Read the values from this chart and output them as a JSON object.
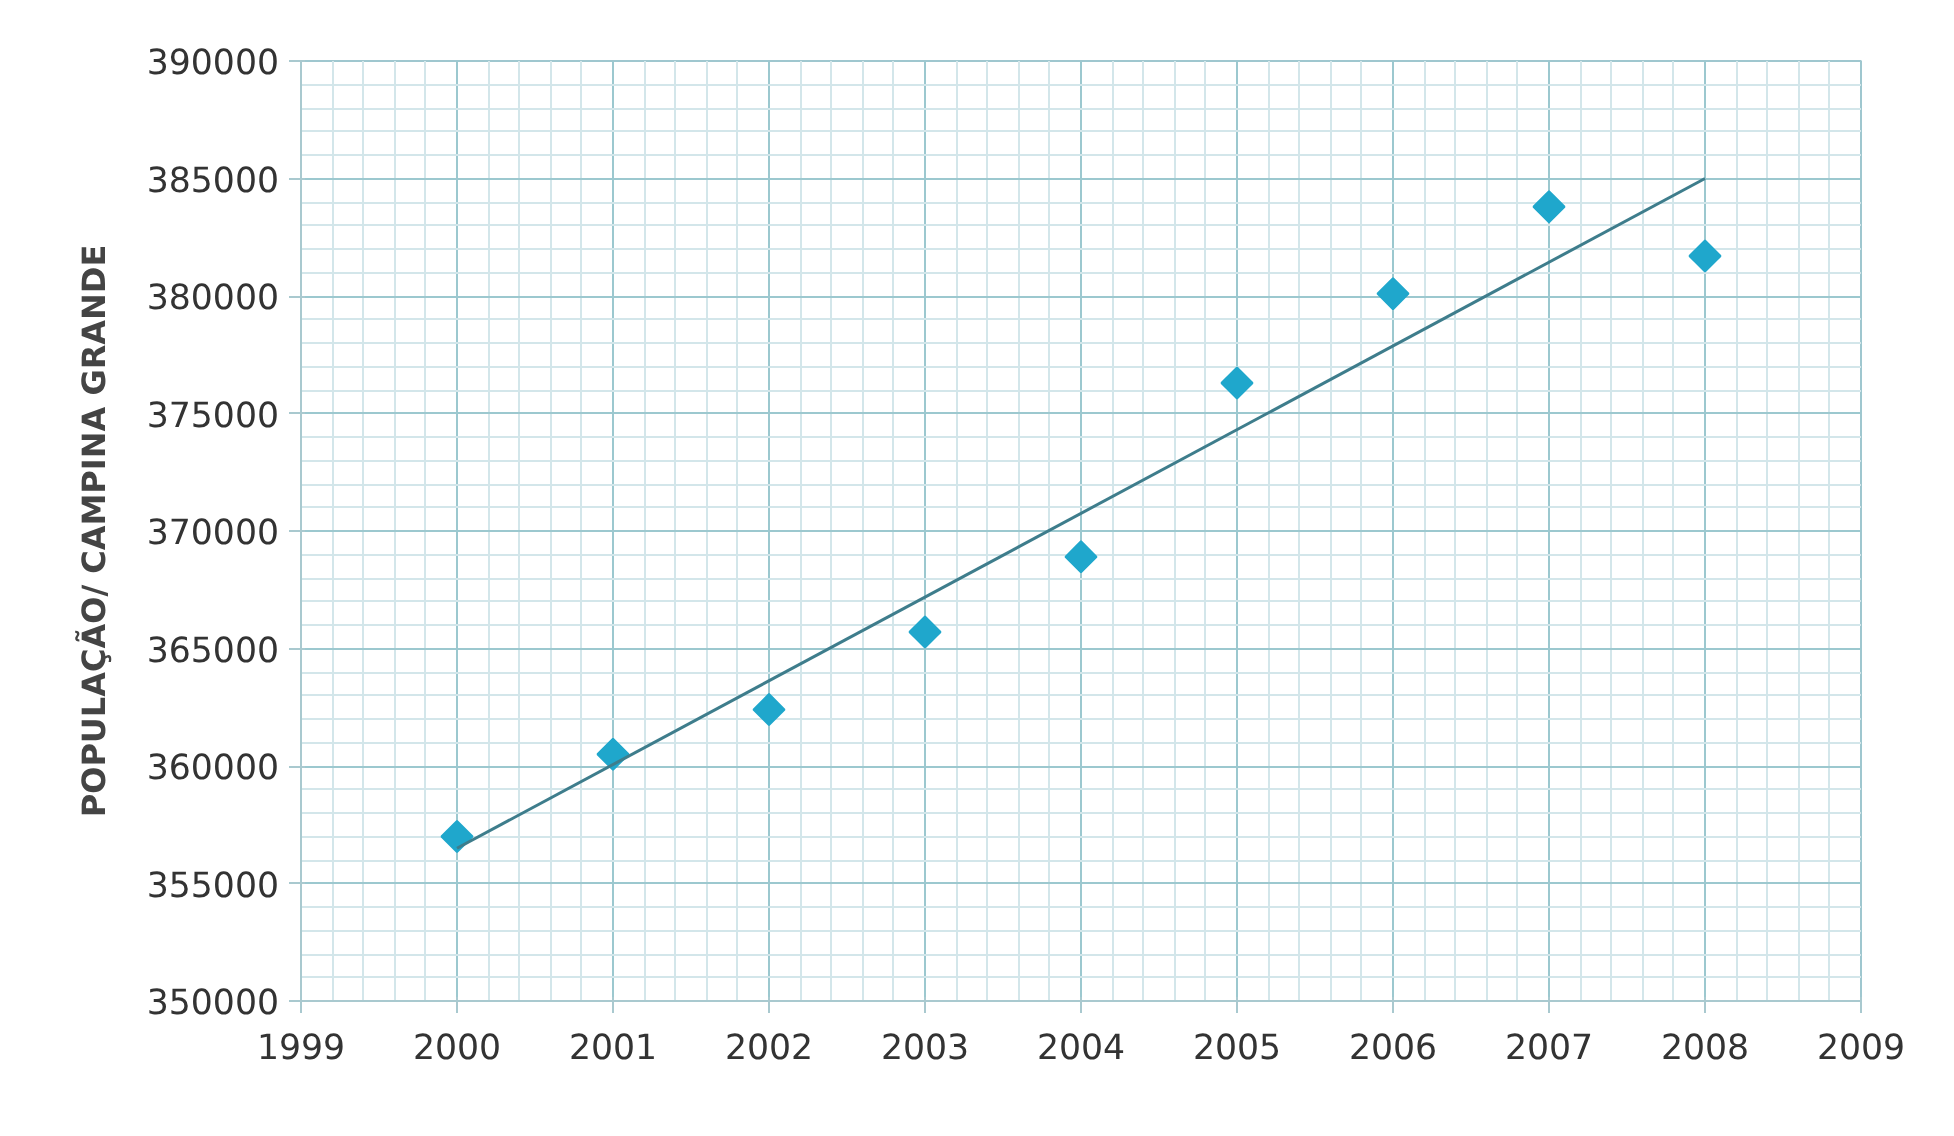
{
  "chart_data": {
    "type": "scatter",
    "ylabel": "POPULAÇÃO/ CAMPINA GRANDE",
    "x": [
      2000,
      2001,
      2002,
      2003,
      2004,
      2005,
      2006,
      2007,
      2008
    ],
    "series": [
      {
        "color": "#1fa7cc",
        "values": [
          357000,
          360500,
          362400,
          365700,
          368900,
          376300,
          380100,
          383800,
          381700
        ]
      },
      {
        "type": "line",
        "marker": "none",
        "color": "#3e7d8c",
        "x": [
          2000,
          2008
        ],
        "values": [
          356500,
          385000
        ]
      }
    ],
    "xlim": [
      1999,
      2009
    ],
    "xticks": [
      1999,
      2000,
      2001,
      2002,
      2003,
      2004,
      2005,
      2006,
      2007,
      2008,
      2009
    ],
    "ylim": [
      350000,
      390000
    ],
    "yticks": [
      350000,
      355000,
      360000,
      365000,
      370000,
      375000,
      380000,
      385000,
      390000
    ],
    "grid": true,
    "marker": "diamond"
  }
}
